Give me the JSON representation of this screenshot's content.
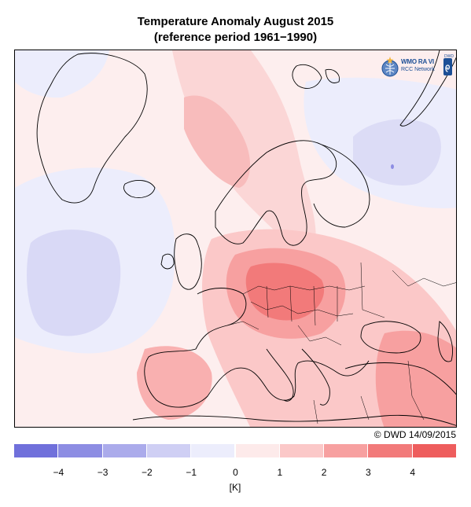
{
  "title": {
    "line1": "Temperature Anomaly August 2015",
    "line2": "(reference period 1961−1990)"
  },
  "copyright": "© DWD 14/09/2015",
  "logo": {
    "text1": "WMO RA VI",
    "text2": "RCC Network",
    "badge": "DWD",
    "icons": [
      "wmo-emblem-icon",
      "dwd-spiral-icon"
    ]
  },
  "legend": {
    "unit": "[K]",
    "tick_labels": [
      "−4",
      "−3",
      "−2",
      "−1",
      "0",
      "1",
      "2",
      "3",
      "4"
    ],
    "classes": [
      {
        "from": -5,
        "to": -4,
        "color": "#7070db"
      },
      {
        "from": -4,
        "to": -3,
        "color": "#8d8de3"
      },
      {
        "from": -3,
        "to": -2,
        "color": "#ababeb"
      },
      {
        "from": -2,
        "to": -1,
        "color": "#cfcff4"
      },
      {
        "from": -1,
        "to": 0,
        "color": "#ecedfc"
      },
      {
        "from": 0,
        "to": 1,
        "color": "#fdeaea"
      },
      {
        "from": 1,
        "to": 2,
        "color": "#fbc8c8"
      },
      {
        "from": 2,
        "to": 3,
        "color": "#f7a0a0"
      },
      {
        "from": 3,
        "to": 4,
        "color": "#f27a7a"
      },
      {
        "from": 4,
        "to": 5,
        "color": "#ee5d5d"
      }
    ]
  }
}
